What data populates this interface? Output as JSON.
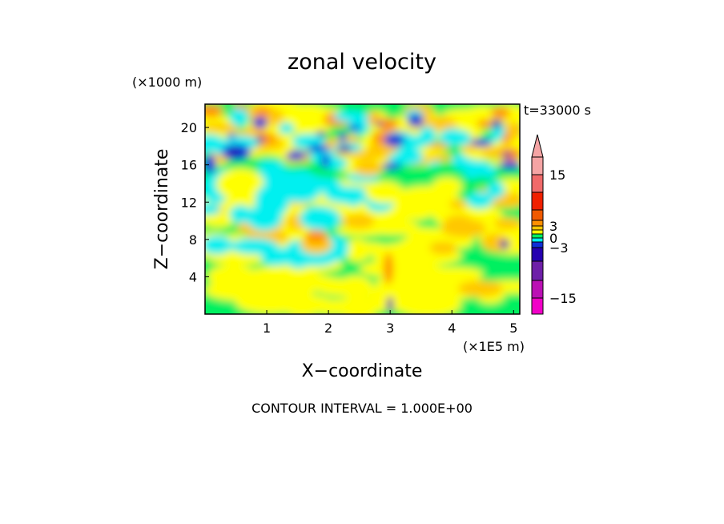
{
  "chart_data": {
    "type": "heatmap",
    "title": "zonal velocity",
    "y_unit_label": "(×1000 m)",
    "x_unit_label": "(×1E5 m)",
    "xlabel": "X−coordinate",
    "ylabel": "Z−coordinate",
    "time_label": "t=33000 s",
    "contour_interval": "CONTOUR INTERVAL = 1.000E+00",
    "xlim": [
      0,
      5.1
    ],
    "ylim": [
      0,
      22.5
    ],
    "x_ticks": [
      1,
      2,
      3,
      4,
      5
    ],
    "x_tick_labels": [
      "1",
      "2",
      "3",
      "4",
      "5"
    ],
    "y_ticks": [
      4,
      8,
      12,
      16,
      20
    ],
    "y_tick_labels": [
      "4",
      "8",
      "12",
      "16",
      "20"
    ],
    "colorbar": {
      "levels": [
        {
          "from": -20,
          "to": -15,
          "color": "#f200c8"
        },
        {
          "from": -15,
          "to": -10,
          "color": "#bb10b4"
        },
        {
          "from": -10,
          "to": -6,
          "color": "#6e1fa8"
        },
        {
          "from": -6,
          "to": -3,
          "color": "#2500b0"
        },
        {
          "from": -3,
          "to": -2,
          "color": "#0f2fd8"
        },
        {
          "from": -2,
          "to": -1,
          "color": "#00f0f0"
        },
        {
          "from": -1,
          "to": 0,
          "color": "#00f060"
        },
        {
          "from": 0,
          "to": 1,
          "color": "#ffff00"
        },
        {
          "from": 1,
          "to": 2,
          "color": "#ffc800"
        },
        {
          "from": 2,
          "to": 3,
          "color": "#ff9000"
        },
        {
          "from": 3,
          "to": 6,
          "color": "#f05a00"
        },
        {
          "from": 6,
          "to": 10,
          "color": "#f02000"
        },
        {
          "from": 10,
          "to": 15,
          "color": "#f06a6a"
        },
        {
          "from": 15,
          "to": 20,
          "color": "#f5a4a4"
        }
      ],
      "tick_values": [
        15,
        3,
        0,
        -3,
        -15
      ],
      "tick_labels": [
        "15",
        "3",
        "0",
        "−3",
        "−15"
      ]
    },
    "field_description_levels": {
      "background": "#00f060"
    }
  }
}
